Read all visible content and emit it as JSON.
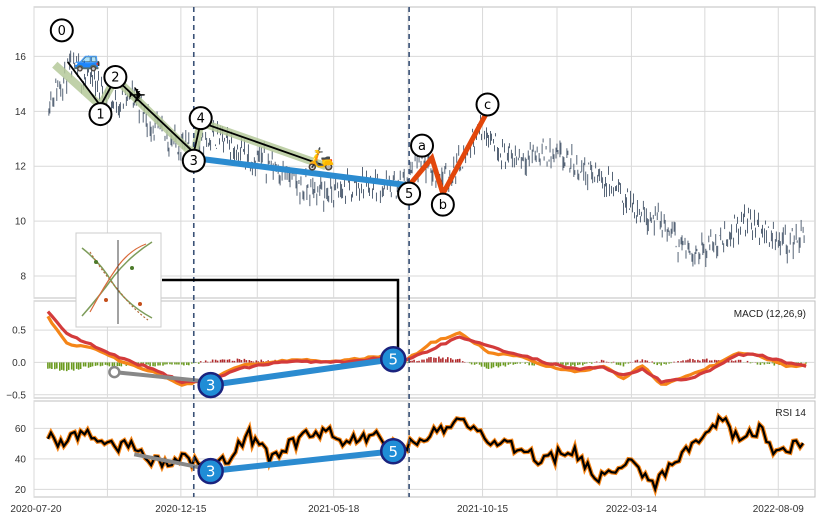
{
  "chart_data": [
    {
      "type": "candlestick",
      "panel": "price",
      "ylim": [
        7.2,
        17.8
      ],
      "yticks": [
        "8",
        "10",
        "12",
        "14",
        "16"
      ],
      "ytick_values": [
        8,
        10,
        12,
        14,
        16
      ],
      "grid": true,
      "x_dates": [
        "2020-07-20",
        "2020-12-15",
        "2021-05-18",
        "2021-10-15",
        "2022-03-14",
        "2022-08-09"
      ],
      "xlabels": [
        "2020-07-20",
        "2020-12-15",
        "2021-05-18",
        "2021-10-15",
        "2022-03-14",
        "2022-08-09"
      ],
      "xlim": [
        "2020-07-20",
        "2022-09-15"
      ],
      "price_path": [
        {
          "x": "2020-08-04",
          "y": 14.4
        },
        {
          "x": "2020-08-25",
          "y": 15.5
        },
        {
          "x": "2020-09-18",
          "y": 15.2
        },
        {
          "x": "2020-10-08",
          "y": 14.3
        },
        {
          "x": "2020-10-30",
          "y": 14.5
        },
        {
          "x": "2020-11-20",
          "y": 13.3
        },
        {
          "x": "2020-12-28",
          "y": 12.5
        },
        {
          "x": "2021-01-18",
          "y": 13.1
        },
        {
          "x": "2021-02-20",
          "y": 12.4
        },
        {
          "x": "2021-03-22",
          "y": 12.0
        },
        {
          "x": "2021-04-15",
          "y": 11.2
        },
        {
          "x": "2021-05-18",
          "y": 11.0
        },
        {
          "x": "2021-06-20",
          "y": 11.4
        },
        {
          "x": "2021-07-19",
          "y": 11.2
        },
        {
          "x": "2021-08-15",
          "y": 12.0
        },
        {
          "x": "2021-09-10",
          "y": 11.5
        },
        {
          "x": "2021-10-15",
          "y": 13.5
        },
        {
          "x": "2021-11-10",
          "y": 12.3
        },
        {
          "x": "2021-12-15",
          "y": 12.5
        },
        {
          "x": "2022-01-20",
          "y": 12.0
        },
        {
          "x": "2022-02-20",
          "y": 11.4
        },
        {
          "x": "2022-03-14",
          "y": 10.6
        },
        {
          "x": "2022-04-10",
          "y": 10.0
        },
        {
          "x": "2022-05-10",
          "y": 8.9
        },
        {
          "x": "2022-06-10",
          "y": 9.2
        },
        {
          "x": "2022-07-05",
          "y": 10.0
        },
        {
          "x": "2022-07-30",
          "y": 9.6
        },
        {
          "x": "2022-08-20",
          "y": 9.2
        },
        {
          "x": "2022-09-05",
          "y": 9.5
        }
      ],
      "wave_lines": [
        {
          "name": "impulse",
          "color": "#000000",
          "points": [
            {
              "x": "2020-08-23",
              "y": 15.8
            },
            {
              "x": "2020-09-25",
              "y": 14.2
            },
            {
              "x": "2020-10-10",
              "y": 15.2
            },
            {
              "x": "2020-12-28",
              "y": 12.5
            },
            {
              "x": "2021-01-04",
              "y": 13.6
            },
            {
              "x": "2021-05-10",
              "y": 12.0
            }
          ]
        },
        {
          "name": "impulse-highlight",
          "color": "#b5c99a",
          "points": [
            {
              "x": "2020-08-10",
              "y": 15.7
            },
            {
              "x": "2020-09-25",
              "y": 14.2
            },
            {
              "x": "2020-10-10",
              "y": 15.2
            },
            {
              "x": "2020-12-28",
              "y": 12.4
            },
            {
              "x": "2021-01-04",
              "y": 13.6
            },
            {
              "x": "2021-05-10",
              "y": 12.0
            }
          ]
        },
        {
          "name": "wave-3-5",
          "color": "#2b8bd0",
          "points": [
            {
              "x": "2020-12-28",
              "y": 12.3
            },
            {
              "x": "2021-08-02",
              "y": 11.3
            }
          ]
        },
        {
          "name": "correction",
          "color": "#e2470c",
          "points": [
            {
              "x": "2021-08-02",
              "y": 11.3
            },
            {
              "x": "2021-08-25",
              "y": 12.3
            },
            {
              "x": "2021-09-05",
              "y": 11.0
            },
            {
              "x": "2021-10-20",
              "y": 14.0
            }
          ]
        }
      ],
      "wave_labels": [
        {
          "text": "0",
          "x": "2020-08-17",
          "y": 16.95
        },
        {
          "text": "1",
          "x": "2020-09-25",
          "y": 13.9
        },
        {
          "text": "2",
          "x": "2020-10-10",
          "y": 15.25
        },
        {
          "text": "3",
          "x": "2020-12-28",
          "y": 12.2
        },
        {
          "text": "4",
          "x": "2021-01-04",
          "y": 13.75
        },
        {
          "text": "5",
          "x": "2021-08-02",
          "y": 11.0
        },
        {
          "text": "a",
          "x": "2021-08-15",
          "y": 12.75
        },
        {
          "text": "b",
          "x": "2021-09-05",
          "y": 10.6
        },
        {
          "text": "c",
          "x": "2021-10-20",
          "y": 14.25
        }
      ],
      "vlines": [
        "2020-12-28",
        "2021-08-02"
      ],
      "stickers": [
        {
          "icon": "🚙",
          "x": "2020-09-12",
          "y": 15.9
        },
        {
          "icon": "✈",
          "x": "2020-11-01",
          "y": 14.6
        },
        {
          "icon": "🛵",
          "x": "2021-05-05",
          "y": 12.3
        }
      ]
    },
    {
      "type": "bar+line",
      "panel": "macd",
      "title": "MACD (12,26,9)",
      "ylim": [
        -0.55,
        0.95
      ],
      "yticks": [
        "0.5",
        "0.0",
        "−0.5"
      ],
      "ytick_values": [
        0.5,
        0.0,
        -0.5
      ],
      "series": [
        {
          "role": "macd",
          "color": "#f58518",
          "points": [
            [
              0,
              0.7
            ],
            [
              2,
              0.3
            ],
            [
              5,
              0.2
            ],
            [
              8,
              0.0
            ],
            [
              11,
              -0.15
            ],
            [
              14,
              -0.35
            ],
            [
              17,
              -0.25
            ],
            [
              20,
              -0.05
            ],
            [
              23,
              0.0
            ],
            [
              26,
              0.05
            ],
            [
              29,
              0.0
            ],
            [
              32,
              0.05
            ],
            [
              35,
              0.1
            ],
            [
              37,
              0.0
            ],
            [
              40,
              0.3
            ],
            [
              43,
              0.45
            ],
            [
              46,
              0.15
            ],
            [
              49,
              0.1
            ],
            [
              52,
              -0.05
            ],
            [
              55,
              -0.15
            ],
            [
              58,
              -0.05
            ],
            [
              60,
              -0.25
            ],
            [
              62,
              -0.05
            ],
            [
              64,
              -0.35
            ],
            [
              67,
              -0.2
            ],
            [
              70,
              0.0
            ],
            [
              72,
              0.15
            ],
            [
              74,
              0.1
            ],
            [
              77,
              -0.05
            ],
            [
              79,
              -0.05
            ]
          ]
        },
        {
          "role": "signal",
          "color": "#d33b3b",
          "points": [
            [
              0,
              0.8
            ],
            [
              2,
              0.45
            ],
            [
              5,
              0.25
            ],
            [
              8,
              0.05
            ],
            [
              11,
              -0.1
            ],
            [
              14,
              -0.3
            ],
            [
              17,
              -0.28
            ],
            [
              20,
              -0.1
            ],
            [
              23,
              -0.02
            ],
            [
              26,
              0.02
            ],
            [
              29,
              0.0
            ],
            [
              32,
              0.02
            ],
            [
              35,
              0.08
            ],
            [
              37,
              0.02
            ],
            [
              40,
              0.2
            ],
            [
              43,
              0.4
            ],
            [
              46,
              0.25
            ],
            [
              49,
              0.12
            ],
            [
              52,
              0.0
            ],
            [
              55,
              -0.1
            ],
            [
              58,
              -0.08
            ],
            [
              60,
              -0.2
            ],
            [
              62,
              -0.1
            ],
            [
              64,
              -0.3
            ],
            [
              67,
              -0.25
            ],
            [
              70,
              -0.05
            ],
            [
              72,
              0.12
            ],
            [
              74,
              0.12
            ],
            [
              77,
              0.0
            ],
            [
              79,
              -0.05
            ]
          ]
        }
      ],
      "histogram_pos_color": "#b0282a",
      "histogram_neg_color": "#6a9a1f",
      "wave_line": {
        "color": "#2b8bd0",
        "points": [
          {
            "x": 17,
            "y": -0.35
          },
          {
            "x": 36,
            "y": 0.05
          }
        ]
      },
      "grey_line": {
        "color": "#888888",
        "points": [
          {
            "x": 7,
            "y": -0.15
          },
          {
            "x": 17,
            "y": -0.3
          }
        ]
      },
      "markers": [
        {
          "text": "3",
          "x": 17,
          "y": -0.35
        },
        {
          "text": "5",
          "x": 36,
          "y": 0.05
        }
      ]
    },
    {
      "type": "line",
      "panel": "rsi",
      "title": "RSI 14",
      "ylim": [
        15,
        78
      ],
      "yticks": [
        "60",
        "40",
        "20"
      ],
      "ytick_values": [
        60,
        40,
        20
      ],
      "series": [
        {
          "role": "rsi",
          "color": "#000000",
          "outline": "#f58518",
          "points": [
            [
              0,
              55
            ],
            [
              2,
              50
            ],
            [
              4,
              60
            ],
            [
              6,
              45
            ],
            [
              8,
              52
            ],
            [
              10,
              40
            ],
            [
              12,
              38
            ],
            [
              14,
              42
            ],
            [
              17,
              32
            ],
            [
              19,
              40
            ],
            [
              21,
              55
            ],
            [
              23,
              42
            ],
            [
              25,
              48
            ],
            [
              27,
              55
            ],
            [
              29,
              60
            ],
            [
              31,
              50
            ],
            [
              33,
              56
            ],
            [
              35,
              52
            ],
            [
              37,
              48
            ],
            [
              39,
              50
            ],
            [
              41,
              60
            ],
            [
              43,
              70
            ],
            [
              45,
              55
            ],
            [
              47,
              50
            ],
            [
              49,
              48
            ],
            [
              51,
              40
            ],
            [
              53,
              42
            ],
            [
              55,
              45
            ],
            [
              57,
              28
            ],
            [
              59,
              35
            ],
            [
              61,
              40
            ],
            [
              63,
              22
            ],
            [
              65,
              38
            ],
            [
              67,
              45
            ],
            [
              69,
              55
            ],
            [
              70,
              70
            ],
            [
              72,
              52
            ],
            [
              74,
              60
            ],
            [
              76,
              45
            ],
            [
              78,
              48
            ],
            [
              79,
              55
            ]
          ]
        }
      ],
      "wave_line": {
        "color": "#2b8bd0",
        "points": [
          {
            "x": 17,
            "y": 32
          },
          {
            "x": 36,
            "y": 45
          }
        ]
      },
      "grey_line": {
        "color": "#888888",
        "points": [
          {
            "x": 9,
            "y": 43
          },
          {
            "x": 17,
            "y": 33
          }
        ]
      },
      "markers": [
        {
          "text": "3",
          "x": 17,
          "y": 32
        },
        {
          "text": "5",
          "x": 36,
          "y": 45
        }
      ]
    }
  ],
  "inset_thumbnail": {
    "icon": "wave-pattern-thumbnail"
  },
  "colors": {
    "grid": "#d9d9d9",
    "candle": "#2c3e55",
    "axis": "#bfbfbf",
    "dashed_line": "#3b5277"
  }
}
